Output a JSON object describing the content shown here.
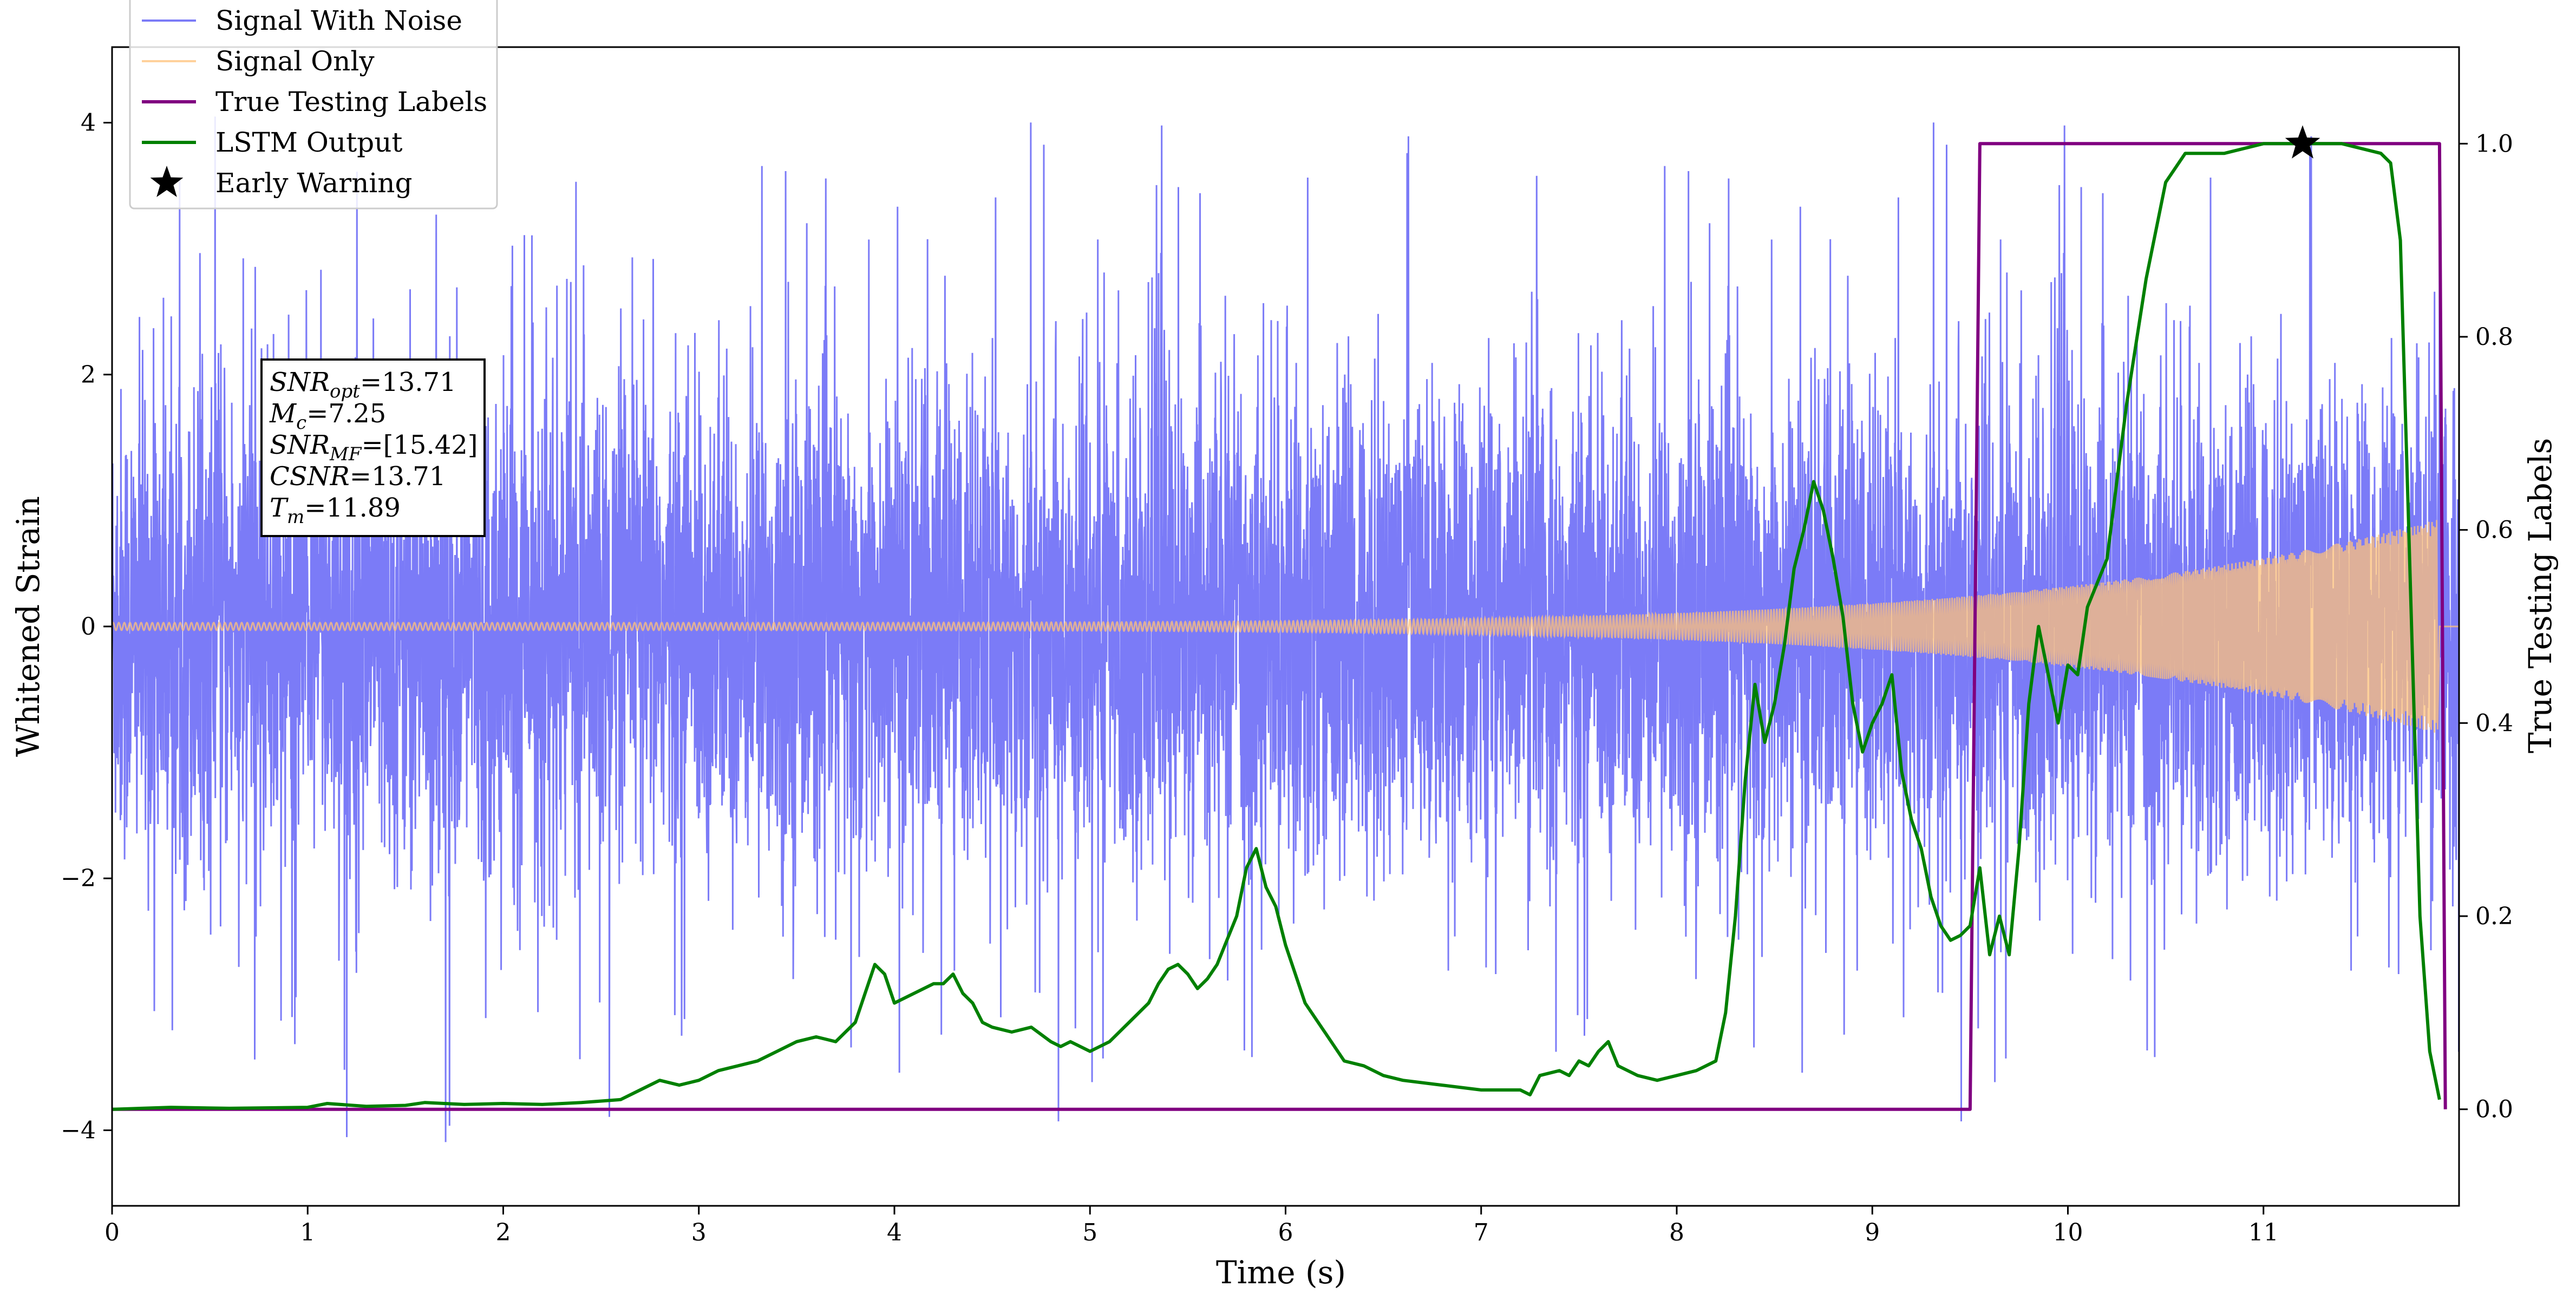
{
  "chart_data": {
    "type": "line",
    "xlabel": "Time (s)",
    "ylabel_left": "Whitened Strain",
    "ylabel_right": "True Testing Labels",
    "xlim": [
      0,
      12.0
    ],
    "ylim_left": [
      -4.6,
      4.6
    ],
    "ylim_right": [
      -0.1,
      1.1
    ],
    "grid": false,
    "legend_position": "upper-left",
    "x_ticks": [
      "0",
      "1",
      "2",
      "3",
      "4",
      "5",
      "6",
      "7",
      "8",
      "9",
      "10",
      "11"
    ],
    "y_ticks_left": [
      {
        "value": 4,
        "label": "4"
      },
      {
        "value": 2,
        "label": "2"
      },
      {
        "value": 0,
        "label": "0"
      },
      {
        "value": -2,
        "label": "−2"
      },
      {
        "value": -4,
        "label": "−4"
      }
    ],
    "y_ticks_right": [
      "0.0",
      "0.2",
      "0.4",
      "0.6",
      "0.8",
      "1.0"
    ],
    "series": [
      {
        "name": "Signal With Noise",
        "color": "#7b7bf7",
        "axis": "left",
        "style": "dense-noise",
        "typical_amplitude": 1.5,
        "peak_amplitude": 4.1
      },
      {
        "name": "Signal Only",
        "color": "#ffc27a",
        "axis": "left",
        "style": "chirp",
        "start_amplitude": 0.03,
        "end_amplitude": 0.85,
        "end_time": 11.89
      },
      {
        "name": "True Testing Labels",
        "color": "#800080",
        "axis": "right",
        "x": [
          0,
          9.5,
          9.55,
          11.9,
          11.93
        ],
        "y": [
          0,
          0,
          1,
          1,
          0
        ]
      },
      {
        "name": "LSTM Output",
        "color": "#008000",
        "axis": "right",
        "x": [
          0,
          0.3,
          0.6,
          1.0,
          1.1,
          1.3,
          1.5,
          1.6,
          1.8,
          2.0,
          2.2,
          2.4,
          2.6,
          2.7,
          2.8,
          2.9,
          3.0,
          3.1,
          3.2,
          3.3,
          3.4,
          3.5,
          3.6,
          3.7,
          3.8,
          3.85,
          3.9,
          3.95,
          4.0,
          4.1,
          4.2,
          4.25,
          4.3,
          4.35,
          4.4,
          4.45,
          4.5,
          4.6,
          4.7,
          4.8,
          4.85,
          4.9,
          5.0,
          5.1,
          5.15,
          5.2,
          5.3,
          5.35,
          5.4,
          5.45,
          5.5,
          5.55,
          5.6,
          5.65,
          5.7,
          5.75,
          5.8,
          5.85,
          5.9,
          5.95,
          6.0,
          6.1,
          6.2,
          6.3,
          6.4,
          6.5,
          6.6,
          6.8,
          7.0,
          7.2,
          7.25,
          7.3,
          7.4,
          7.45,
          7.5,
          7.55,
          7.6,
          7.65,
          7.7,
          7.8,
          7.9,
          8.0,
          8.1,
          8.2,
          8.25,
          8.3,
          8.35,
          8.4,
          8.45,
          8.5,
          8.55,
          8.6,
          8.65,
          8.7,
          8.75,
          8.8,
          8.85,
          8.9,
          8.95,
          9.0,
          9.05,
          9.1,
          9.15,
          9.2,
          9.25,
          9.3,
          9.35,
          9.4,
          9.45,
          9.5,
          9.55,
          9.6,
          9.65,
          9.7,
          9.75,
          9.8,
          9.85,
          9.9,
          9.95,
          10.0,
          10.05,
          10.1,
          10.2,
          10.3,
          10.4,
          10.5,
          10.6,
          10.8,
          11.0,
          11.2,
          11.4,
          11.6,
          11.65,
          11.7,
          11.75,
          11.8,
          11.85,
          11.9
        ],
        "y": [
          0.0,
          0.002,
          0.001,
          0.002,
          0.006,
          0.003,
          0.004,
          0.007,
          0.005,
          0.006,
          0.005,
          0.007,
          0.01,
          0.02,
          0.03,
          0.025,
          0.03,
          0.04,
          0.045,
          0.05,
          0.06,
          0.07,
          0.075,
          0.07,
          0.09,
          0.12,
          0.15,
          0.14,
          0.11,
          0.12,
          0.13,
          0.13,
          0.14,
          0.12,
          0.11,
          0.09,
          0.085,
          0.08,
          0.085,
          0.07,
          0.065,
          0.07,
          0.06,
          0.07,
          0.08,
          0.09,
          0.11,
          0.13,
          0.145,
          0.15,
          0.14,
          0.125,
          0.135,
          0.15,
          0.175,
          0.2,
          0.25,
          0.27,
          0.23,
          0.21,
          0.17,
          0.11,
          0.08,
          0.05,
          0.045,
          0.035,
          0.03,
          0.025,
          0.02,
          0.02,
          0.015,
          0.035,
          0.04,
          0.035,
          0.05,
          0.045,
          0.06,
          0.07,
          0.045,
          0.035,
          0.03,
          0.035,
          0.04,
          0.05,
          0.1,
          0.2,
          0.34,
          0.44,
          0.38,
          0.42,
          0.48,
          0.56,
          0.6,
          0.65,
          0.62,
          0.57,
          0.51,
          0.42,
          0.37,
          0.4,
          0.42,
          0.45,
          0.35,
          0.3,
          0.27,
          0.22,
          0.19,
          0.175,
          0.18,
          0.19,
          0.25,
          0.16,
          0.2,
          0.16,
          0.27,
          0.42,
          0.5,
          0.45,
          0.4,
          0.46,
          0.45,
          0.52,
          0.57,
          0.73,
          0.86,
          0.96,
          0.99,
          0.99,
          1.0,
          1.0,
          1.0,
          0.99,
          0.98,
          0.9,
          0.55,
          0.2,
          0.06,
          0.01
        ]
      },
      {
        "name": "Early Warning",
        "color": "#000000",
        "axis": "right",
        "marker": "star",
        "x": [
          11.2
        ],
        "y": [
          1.0
        ]
      }
    ],
    "annotation": {
      "lines": [
        {
          "base": "SNR",
          "sub": "opt",
          "value": "=13.71"
        },
        {
          "base": "M",
          "sub": "c",
          "value": "=7.25"
        },
        {
          "base": "SNR",
          "sub": "MF",
          "value": "=[15.42]"
        },
        {
          "base": "CSNR",
          "sub": "",
          "value": "=13.71"
        },
        {
          "base": "T",
          "sub": "m",
          "value": "=11.89"
        }
      ]
    }
  }
}
